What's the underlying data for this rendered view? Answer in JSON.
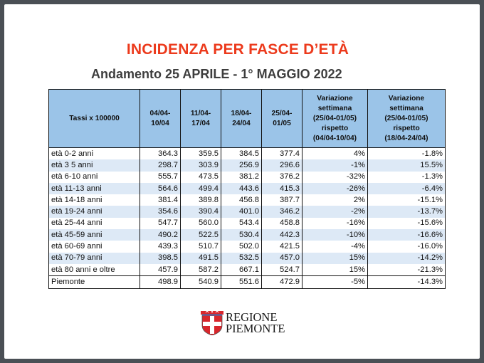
{
  "title": "INCIDENZA PER FASCE D’ETÀ",
  "subtitle": "Andamento 25 APRILE - 1° MAGGIO 2022",
  "table": {
    "headers": [
      "Tassi x 100000",
      "04/04-\n10/04",
      "11/04-\n17/04",
      "18/04-\n24/04",
      "25/04-\n01/05",
      "Variazione\nsettimana\n(25/04-01/05)\nrispetto\n(04/04-10/04)",
      "Variazione\nsettimana\n(25/04-01/05)\nrispetto\n(18/04-24/04)"
    ],
    "rows": [
      [
        "età 0-2 anni",
        "364.3",
        "359.5",
        "384.5",
        "377.4",
        "4%",
        "-1.8%"
      ],
      [
        "età 3 5 anni",
        "298.7",
        "303.9",
        "256.9",
        "296.6",
        "-1%",
        "15.5%"
      ],
      [
        "età 6-10 anni",
        "555.7",
        "473.5",
        "381.2",
        "376.2",
        "-32%",
        "-1.3%"
      ],
      [
        "età 11-13 anni",
        "564.6",
        "499.4",
        "443.6",
        "415.3",
        "-26%",
        "-6.4%"
      ],
      [
        "età 14-18 anni",
        "381.4",
        "389.8",
        "456.8",
        "387.7",
        "2%",
        "-15.1%"
      ],
      [
        "età 19-24 anni",
        "354.6",
        "390.4",
        "401.0",
        "346.2",
        "-2%",
        "-13.7%"
      ],
      [
        "età 25-44 anni",
        "547.7",
        "560.0",
        "543.4",
        "458.8",
        "-16%",
        "-15.6%"
      ],
      [
        "età 45-59 anni",
        "490.2",
        "522.5",
        "530.4",
        "442.3",
        "-10%",
        "-16.6%"
      ],
      [
        "età 60-69 anni",
        "439.3",
        "510.7",
        "502.0",
        "421.5",
        "-4%",
        "-16.0%"
      ],
      [
        "età 70-79 anni",
        "398.5",
        "491.5",
        "532.5",
        "457.0",
        "15%",
        "-14.2%"
      ],
      [
        "età 80 anni e oltre",
        "457.9",
        "587.2",
        "667.1",
        "524.7",
        "15%",
        "-21.3%"
      ],
      [
        "Piemonte",
        "498.9",
        "540.9",
        "551.6",
        "472.9",
        "-5%",
        "-14.3%"
      ]
    ]
  },
  "logo": {
    "line1": "REGIONE",
    "line2": "PIEMONTE",
    "icon": "piemonte-coat-of-arms-icon"
  },
  "colors": {
    "title": "#ec3a1c",
    "header_fill": "#9bc4e8",
    "band_fill": "#dde9f6",
    "frame": "#4a4f55"
  }
}
